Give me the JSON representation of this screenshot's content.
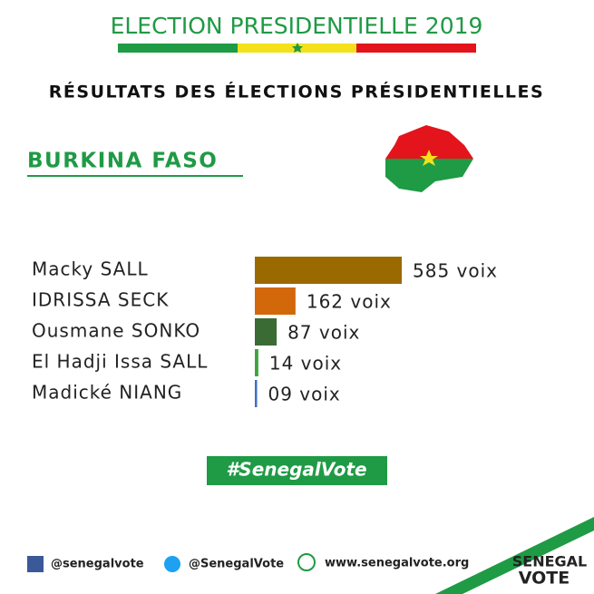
{
  "header": {
    "title": "ELECTION PRESIDENTIELLE 2019"
  },
  "chart_data": {
    "type": "hbar",
    "title": "RÉSULTATS DES ÉLECTIONS PRÉSIDENTIELLES",
    "subtitle": "BURKINA FASO",
    "categories": [
      "Macky SALL",
      "IDRISSA SECK",
      "Ousmane SONKO",
      "El Hadji Issa SALL",
      "Madické NIANG"
    ],
    "values": [
      585,
      162,
      87,
      14,
      9
    ],
    "value_labels": [
      "585 voix",
      "162 voix",
      "87 voix",
      "14 voix",
      "09 voix"
    ],
    "colors": [
      "#9a6a00",
      "#d2680a",
      "#3b6b34",
      "#3ea53e",
      "#3a6fc8"
    ]
  },
  "hashtag": "#SenegalVote",
  "footer": {
    "facebook": "@senegalvote",
    "twitter": "@SenegalVote",
    "website": "www.senegalvote.org",
    "logo_top": "SENEGAL",
    "logo_bottom": "VOTE"
  }
}
